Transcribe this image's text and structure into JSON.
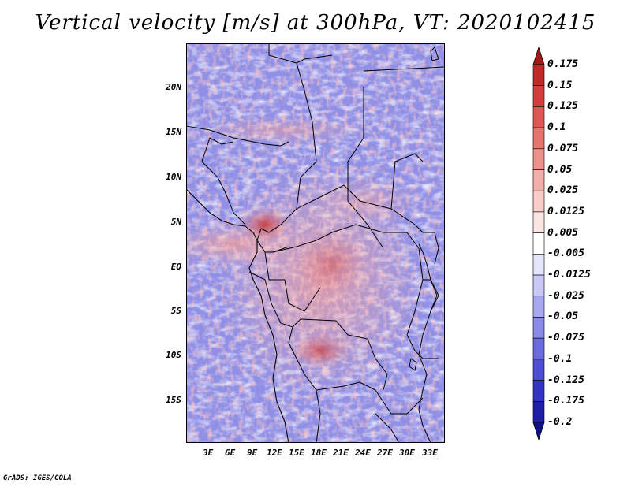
{
  "title": "Vertical velocity [m/s] at 300hPa, VT: 2020102415",
  "lat_ticks": [
    "20N",
    "15N",
    "10N",
    "5N",
    "EQ",
    "5S",
    "10S",
    "15S"
  ],
  "lon_ticks": [
    "3E",
    "6E",
    "9E",
    "12E",
    "15E",
    "18E",
    "21E",
    "24E",
    "27E",
    "30E",
    "33E"
  ],
  "colorbar": {
    "labels": [
      "0.175",
      "0.15",
      "0.125",
      "0.1",
      "0.075",
      "0.05",
      "0.025",
      "0.0125",
      "0.005",
      "-0.005",
      "-0.0125",
      "-0.025",
      "-0.05",
      "-0.075",
      "-0.1",
      "-0.125",
      "-0.175",
      "-0.2"
    ],
    "colors": [
      "#a0191b",
      "#bd2a28",
      "#d23e3c",
      "#dc5752",
      "#e5736e",
      "#ec918b",
      "#f2aeaa",
      "#f7cbc8",
      "#fbe5e3",
      "#ffffff",
      "#e4e4fb",
      "#c8c8f6",
      "#a8a8f0",
      "#8a8ae8",
      "#6b6bde",
      "#4d4dd2",
      "#3333c2",
      "#1d1da6",
      "#0f0f86"
    ]
  },
  "footer": "GrADS: IGES/COLA"
}
